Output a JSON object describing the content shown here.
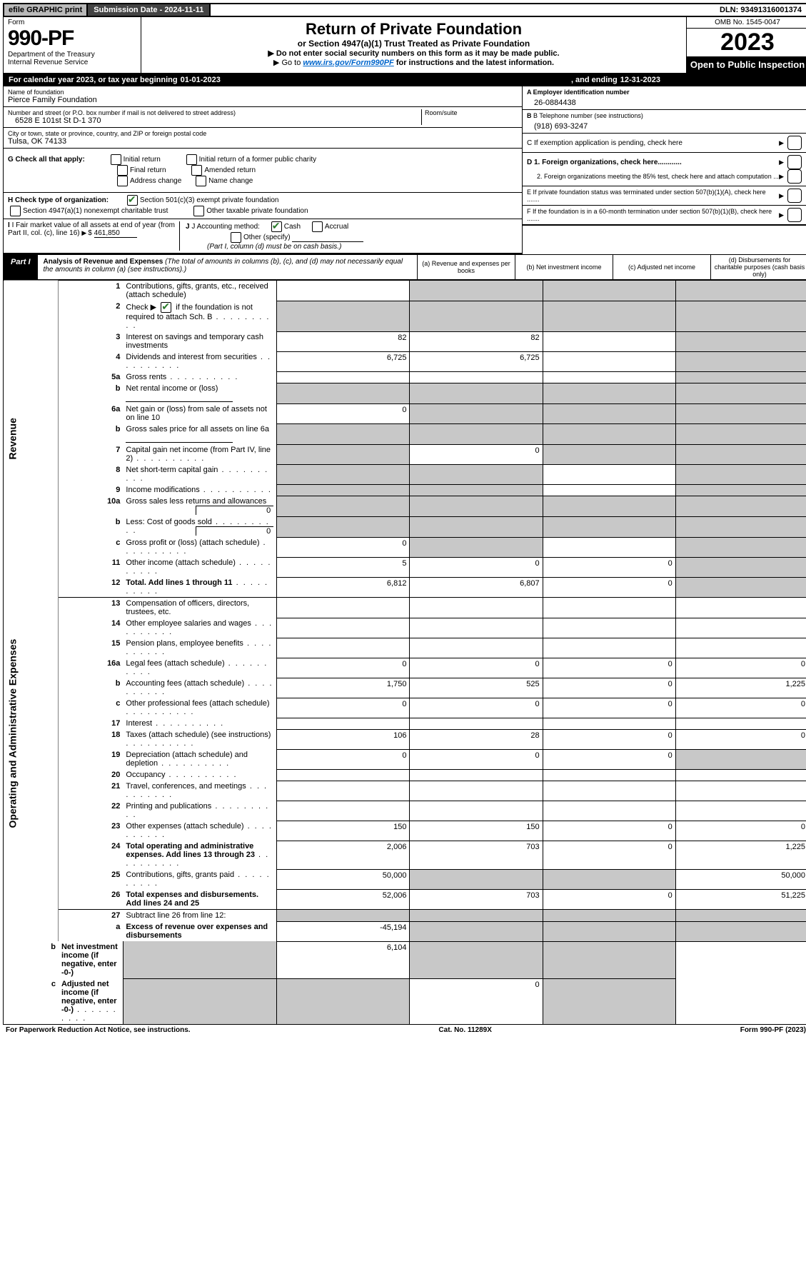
{
  "topbar": {
    "efile": "efile GRAPHIC print",
    "subdate": "Submission Date - 2024-11-11",
    "dln": "DLN: 93491316001374"
  },
  "header": {
    "form_label": "Form",
    "form_no": "990-PF",
    "dept": "Department of the Treasury",
    "irs": "Internal Revenue Service",
    "title": "Return of Private Foundation",
    "subtitle": "or Section 4947(a)(1) Trust Treated as Private Foundation",
    "note1": "▶ Do not enter social security numbers on this form as it may be made public.",
    "note2_pre": "▶ Go to ",
    "note2_link": "www.irs.gov/Form990PF",
    "note2_post": " for instructions and the latest information.",
    "omb": "OMB No. 1545-0047",
    "year": "2023",
    "open": "Open to Public Inspection"
  },
  "calendar": {
    "pre": "For calendar year 2023, or tax year beginning ",
    "begin": "01-01-2023",
    "mid": " , and ending ",
    "end": "12-31-2023"
  },
  "identity": {
    "name_lbl": "Name of foundation",
    "name": "Pierce Family Foundation",
    "addr_lbl": "Number and street (or P.O. box number if mail is not delivered to street address)",
    "addr": "6528 E 101st St D-1 370",
    "room_lbl": "Room/suite",
    "city_lbl": "City or town, state or province, country, and ZIP or foreign postal code",
    "city": "Tulsa, OK  74133",
    "ein_lbl": "A Employer identification number",
    "ein": "26-0884438",
    "phone_lbl": "B Telephone number (see instructions)",
    "phone": "(918) 693-3247",
    "c_lbl": "C If exemption application is pending, check here",
    "d1_lbl": "D 1. Foreign organizations, check here............",
    "d2_lbl": "2. Foreign organizations meeting the 85% test, check here and attach computation ...",
    "e_lbl": "E  If private foundation status was terminated under section 507(b)(1)(A), check here .......",
    "f_lbl": "F  If the foundation is in a 60-month termination under section 507(b)(1)(B), check here .......",
    "g_lbl": "G Check all that apply:",
    "g_opts": [
      "Initial return",
      "Initial return of a former public charity",
      "Final return",
      "Amended return",
      "Address change",
      "Name change"
    ],
    "h_lbl": "H Check type of organization:",
    "h_opts": [
      "Section 501(c)(3) exempt private foundation",
      "Section 4947(a)(1) nonexempt charitable trust",
      "Other taxable private foundation"
    ],
    "i_lbl": "I Fair market value of all assets at end of year (from Part II, col. (c), line 16)",
    "i_val": "461,850",
    "j_lbl": "J Accounting method:",
    "j_opts": [
      "Cash",
      "Accrual",
      "Other (specify)"
    ],
    "j_note": "(Part I, column (d) must be on cash basis.)"
  },
  "part1": {
    "label": "Part I",
    "title": "Analysis of Revenue and Expenses",
    "title_note": " (The total of amounts in columns (b), (c), and (d) may not necessarily equal the amounts in column (a) (see instructions).)",
    "col_a": "(a)  Revenue and expenses per books",
    "col_b": "(b)  Net investment income",
    "col_c": "(c)  Adjusted net income",
    "col_d": "(d)  Disbursements for charitable purposes (cash basis only)"
  },
  "side": {
    "rev": "Revenue",
    "exp": "Operating and Administrative Expenses"
  },
  "rows": [
    {
      "n": "1",
      "d": "Contributions, gifts, grants, etc., received (attach schedule)",
      "a": "",
      "b": "grey",
      "c": "grey",
      "dcol": "grey"
    },
    {
      "n": "2",
      "d": "Check ▶ ☑ if the foundation is not required to attach Sch. B",
      "dots": true,
      "a": "grey",
      "b": "grey",
      "c": "grey",
      "dcol": "grey",
      "checked": true,
      "nobold": true
    },
    {
      "n": "3",
      "d": "Interest on savings and temporary cash investments",
      "a": "82",
      "b": "82",
      "c": "",
      "dcol": "grey"
    },
    {
      "n": "4",
      "d": "Dividends and interest from securities",
      "dots": true,
      "a": "6,725",
      "b": "6,725",
      "c": "",
      "dcol": "grey"
    },
    {
      "n": "5a",
      "d": "Gross rents",
      "dots": true,
      "a": "",
      "b": "",
      "c": "",
      "dcol": "grey"
    },
    {
      "n": "b",
      "d": "Net rental income or (loss)",
      "underline": true,
      "a": "grey",
      "b": "grey",
      "c": "grey",
      "dcol": "grey"
    },
    {
      "n": "6a",
      "d": "Net gain or (loss) from sale of assets not on line 10",
      "a": "0",
      "b": "grey",
      "c": "grey",
      "dcol": "grey"
    },
    {
      "n": "b",
      "d": "Gross sales price for all assets on line 6a",
      "underline": true,
      "a": "grey",
      "b": "grey",
      "c": "grey",
      "dcol": "grey"
    },
    {
      "n": "7",
      "d": "Capital gain net income (from Part IV, line 2)",
      "dots": true,
      "a": "grey",
      "b": "0",
      "c": "grey",
      "dcol": "grey"
    },
    {
      "n": "8",
      "d": "Net short-term capital gain",
      "dots": true,
      "a": "grey",
      "b": "grey",
      "c": "",
      "dcol": "grey"
    },
    {
      "n": "9",
      "d": "Income modifications",
      "dots": true,
      "a": "grey",
      "b": "grey",
      "c": "",
      "dcol": "grey"
    },
    {
      "n": "10a",
      "d": "Gross sales less returns and allowances",
      "inline": "0",
      "a": "grey",
      "b": "grey",
      "c": "grey",
      "dcol": "grey"
    },
    {
      "n": "b",
      "d": "Less: Cost of goods sold",
      "dots": true,
      "inline": "0",
      "a": "grey",
      "b": "grey",
      "c": "grey",
      "dcol": "grey"
    },
    {
      "n": "c",
      "d": "Gross profit or (loss) (attach schedule)",
      "dots": true,
      "a": "0",
      "b": "grey",
      "c": "",
      "dcol": "grey"
    },
    {
      "n": "11",
      "d": "Other income (attach schedule)",
      "dots": true,
      "a": "5",
      "b": "0",
      "c": "0",
      "dcol": "grey"
    },
    {
      "n": "12",
      "d": "Total. Add lines 1 through 11",
      "dots": true,
      "bold": true,
      "a": "6,812",
      "b": "6,807",
      "c": "0",
      "dcol": "grey",
      "groupend": true
    },
    {
      "n": "13",
      "d": "Compensation of officers, directors, trustees, etc.",
      "a": "",
      "b": "",
      "c": "",
      "dcol": ""
    },
    {
      "n": "14",
      "d": "Other employee salaries and wages",
      "dots": true,
      "a": "",
      "b": "",
      "c": "",
      "dcol": ""
    },
    {
      "n": "15",
      "d": "Pension plans, employee benefits",
      "dots": true,
      "a": "",
      "b": "",
      "c": "",
      "dcol": ""
    },
    {
      "n": "16a",
      "d": "Legal fees (attach schedule)",
      "dots": true,
      "a": "0",
      "b": "0",
      "c": "0",
      "dcol": "0"
    },
    {
      "n": "b",
      "d": "Accounting fees (attach schedule)",
      "dots": true,
      "a": "1,750",
      "b": "525",
      "c": "0",
      "dcol": "1,225"
    },
    {
      "n": "c",
      "d": "Other professional fees (attach schedule)",
      "dots": true,
      "a": "0",
      "b": "0",
      "c": "0",
      "dcol": "0"
    },
    {
      "n": "17",
      "d": "Interest",
      "dots": true,
      "a": "",
      "b": "",
      "c": "",
      "dcol": ""
    },
    {
      "n": "18",
      "d": "Taxes (attach schedule) (see instructions)",
      "dots": true,
      "a": "106",
      "b": "28",
      "c": "0",
      "dcol": "0"
    },
    {
      "n": "19",
      "d": "Depreciation (attach schedule) and depletion",
      "dots": true,
      "a": "0",
      "b": "0",
      "c": "0",
      "dcol": "grey"
    },
    {
      "n": "20",
      "d": "Occupancy",
      "dots": true,
      "a": "",
      "b": "",
      "c": "",
      "dcol": ""
    },
    {
      "n": "21",
      "d": "Travel, conferences, and meetings",
      "dots": true,
      "a": "",
      "b": "",
      "c": "",
      "dcol": ""
    },
    {
      "n": "22",
      "d": "Printing and publications",
      "dots": true,
      "a": "",
      "b": "",
      "c": "",
      "dcol": ""
    },
    {
      "n": "23",
      "d": "Other expenses (attach schedule)",
      "dots": true,
      "a": "150",
      "b": "150",
      "c": "0",
      "dcol": "0"
    },
    {
      "n": "24",
      "d": "Total operating and administrative expenses. Add lines 13 through 23",
      "dots": true,
      "bold": true,
      "a": "2,006",
      "b": "703",
      "c": "0",
      "dcol": "1,225"
    },
    {
      "n": "25",
      "d": "Contributions, gifts, grants paid",
      "dots": true,
      "a": "50,000",
      "b": "grey",
      "c": "grey",
      "dcol": "50,000"
    },
    {
      "n": "26",
      "d": "Total expenses and disbursements. Add lines 24 and 25",
      "bold": true,
      "a": "52,006",
      "b": "703",
      "c": "0",
      "dcol": "51,225",
      "groupend": true
    },
    {
      "n": "27",
      "d": "Subtract line 26 from line 12:",
      "a": "grey",
      "b": "grey",
      "c": "grey",
      "dcol": "grey"
    },
    {
      "n": "a",
      "d": "Excess of revenue over expenses and disbursements",
      "bold": true,
      "a": "-45,194",
      "b": "grey",
      "c": "grey",
      "dcol": "grey"
    },
    {
      "n": "b",
      "d": "Net investment income (if negative, enter -0-)",
      "bold": true,
      "a": "grey",
      "b": "6,104",
      "c": "grey",
      "dcol": "grey"
    },
    {
      "n": "c",
      "d": "Adjusted net income (if negative, enter -0-)",
      "dots": true,
      "bold": true,
      "a": "grey",
      "b": "grey",
      "c": "0",
      "dcol": "grey"
    }
  ],
  "footer": {
    "left": "For Paperwork Reduction Act Notice, see instructions.",
    "mid": "Cat. No. 11289X",
    "right": "Form 990-PF (2023)"
  }
}
